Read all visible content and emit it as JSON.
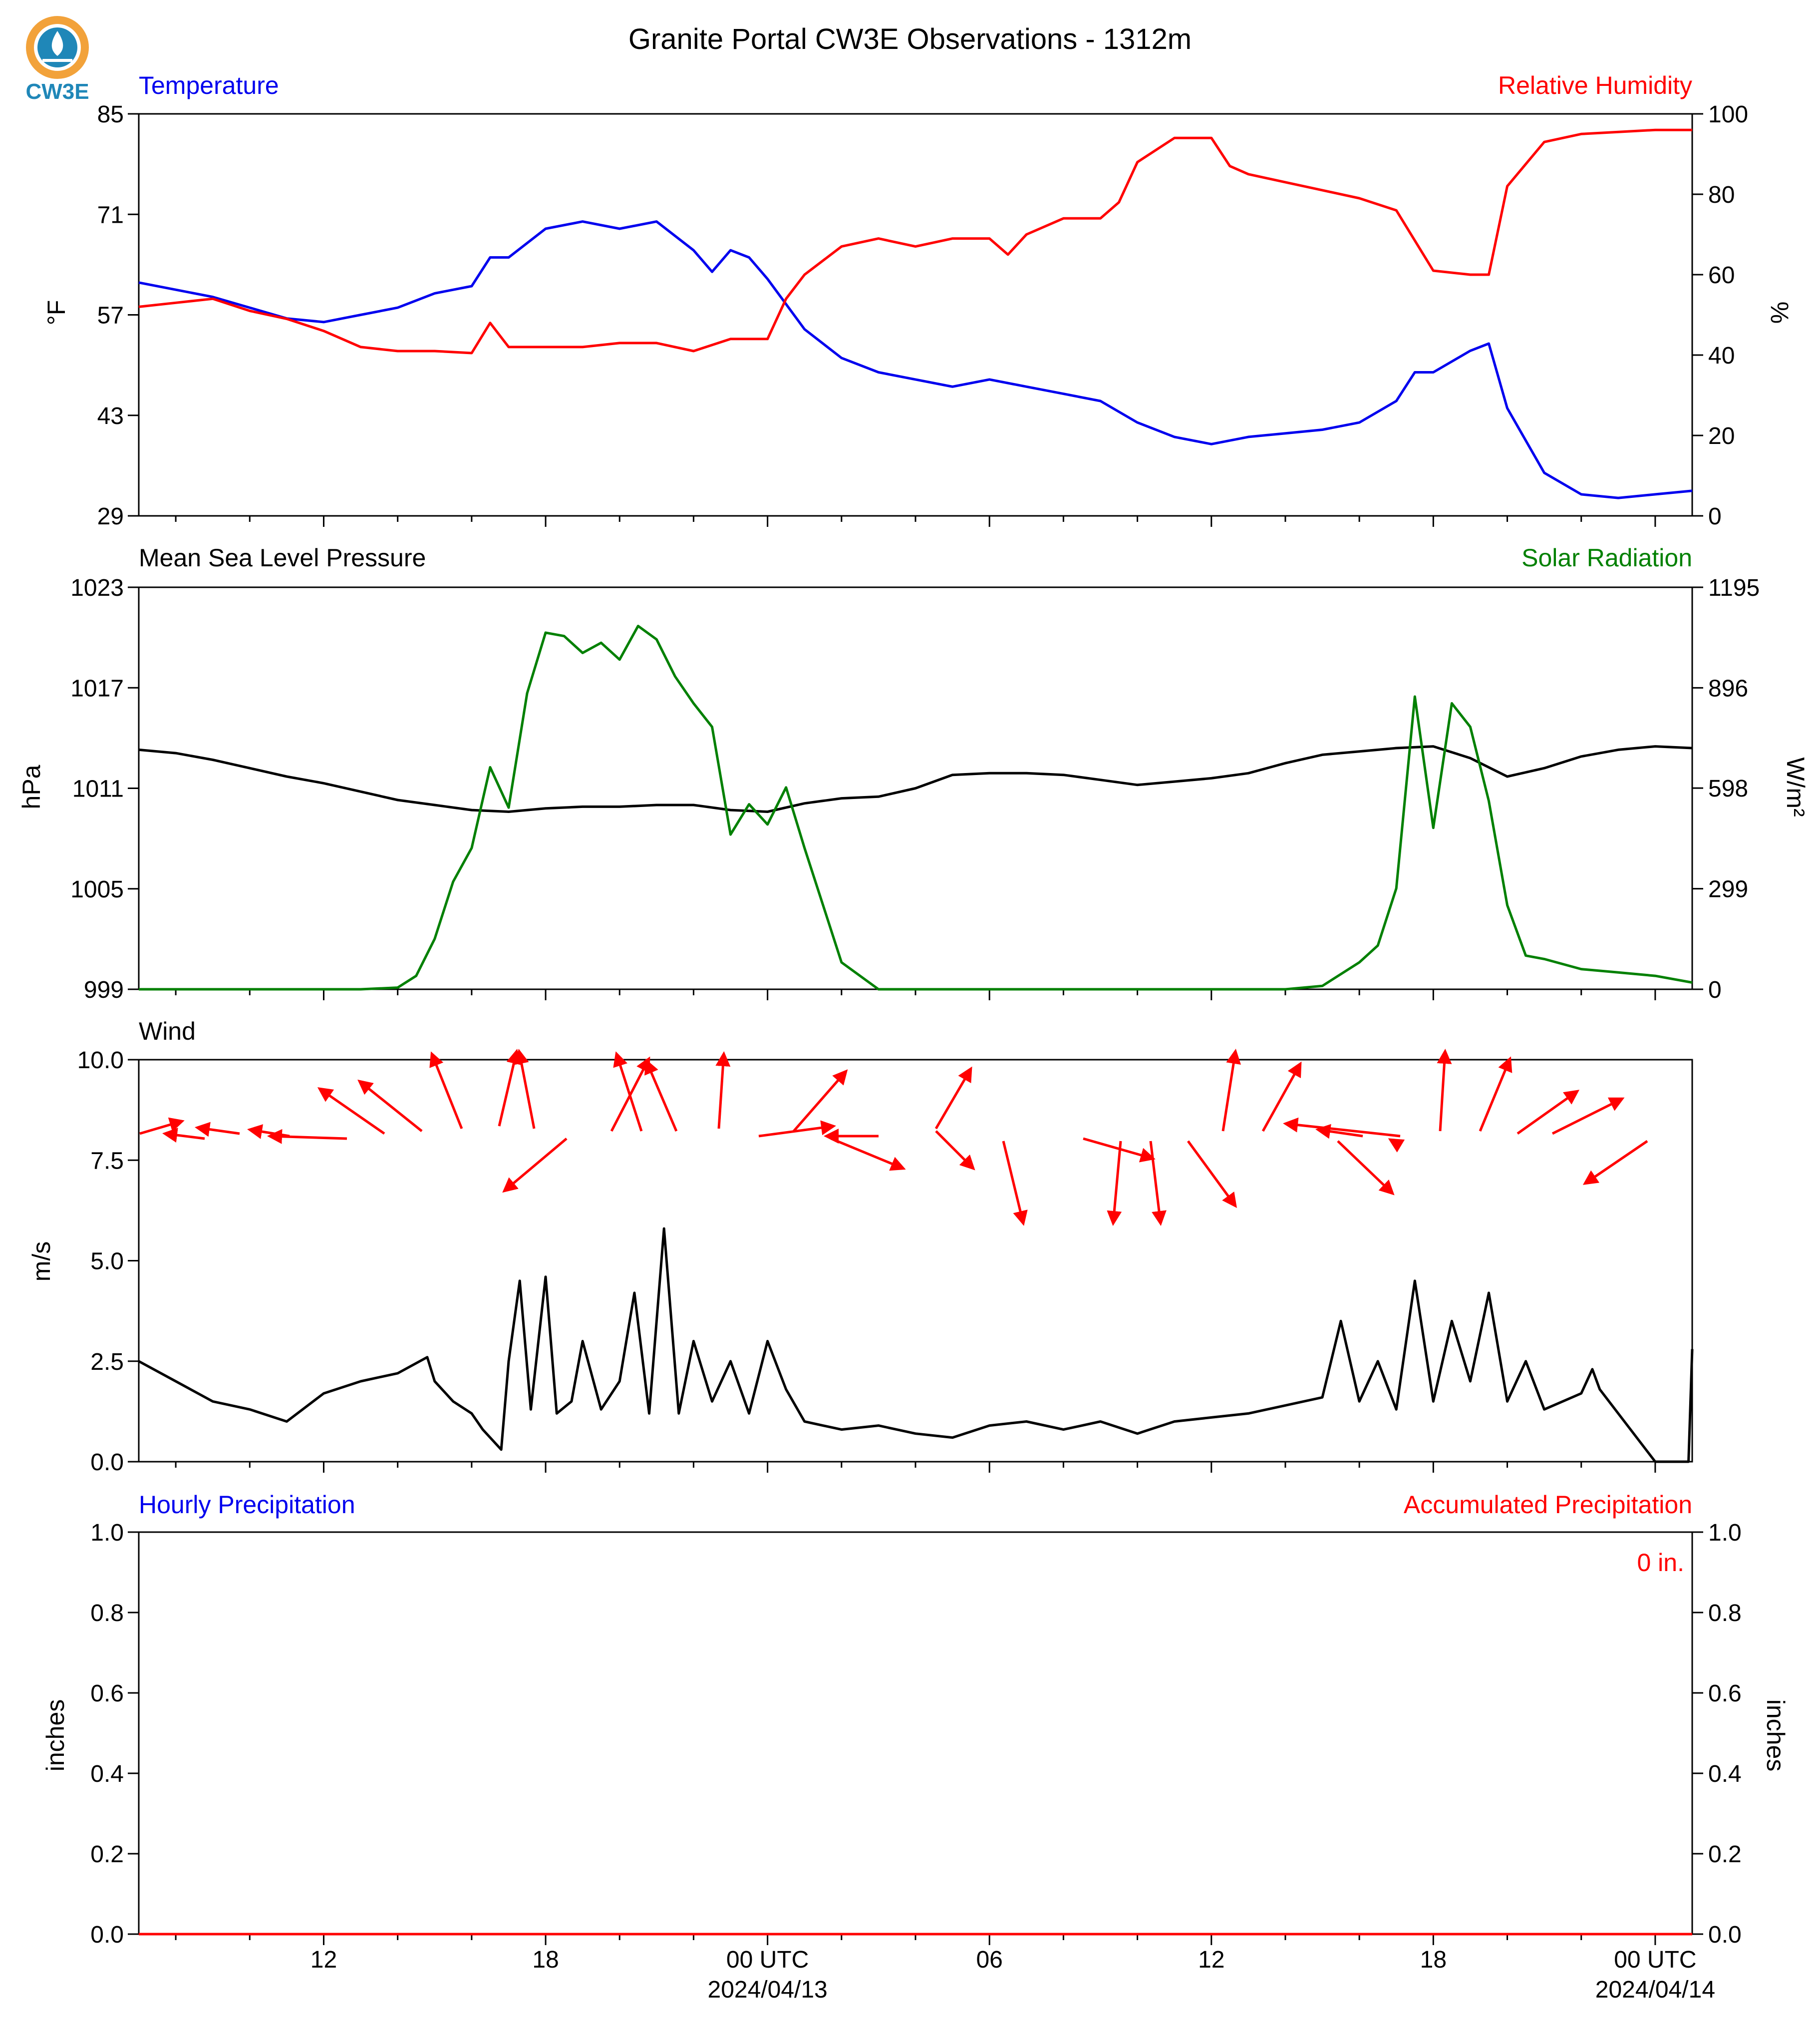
{
  "page": {
    "title": "Granite Portal CW3E Observations - 1312m",
    "logo_text": "CW3E"
  },
  "colors": {
    "temperature": "#0000ee",
    "humidity": "#ff0000",
    "pressure": "#000000",
    "solar": "#008000",
    "wind": "#000000",
    "arrows": "#ff0000",
    "hourly_precip": "#0000ee",
    "accum_precip": "#ff0000",
    "logo_orange": "#f2a23a",
    "logo_blue": "#1f87b8"
  },
  "x_axis": {
    "start_hour": 7,
    "end_hour": 49,
    "major_ticks": [
      {
        "hour": 12,
        "label": "12",
        "date": ""
      },
      {
        "hour": 18,
        "label": "18",
        "date": ""
      },
      {
        "hour": 24,
        "label": "00 UTC",
        "date": "2024/04/13"
      },
      {
        "hour": 30,
        "label": "06",
        "date": ""
      },
      {
        "hour": 36,
        "label": "12",
        "date": ""
      },
      {
        "hour": 42,
        "label": "18",
        "date": ""
      },
      {
        "hour": 48,
        "label": "00 UTC",
        "date": "2024/04/14"
      }
    ],
    "minor_ticks": [
      8,
      10,
      14,
      16,
      20,
      22,
      26,
      28,
      32,
      34,
      38,
      40,
      44,
      46
    ]
  },
  "chart_data": [
    {
      "type": "line",
      "left_title": "Temperature",
      "right_title": "Relative Humidity",
      "ylabel": "°F",
      "y2label": "%",
      "ylim": [
        29,
        85
      ],
      "yticks": [
        29,
        43,
        57,
        71,
        85
      ],
      "y2lim": [
        0,
        100
      ],
      "y2ticks": [
        0,
        20,
        40,
        60,
        80,
        100
      ],
      "series": [
        {
          "axis": "left",
          "x": [
            7,
            8,
            9,
            10,
            11,
            12,
            13,
            14,
            15,
            16,
            16.5,
            17,
            18,
            19,
            20,
            21,
            22,
            22.5,
            23,
            23.5,
            24,
            25,
            26,
            27,
            28,
            29,
            30,
            31,
            32,
            33,
            34,
            35,
            36,
            37,
            38,
            39,
            40,
            41,
            41.5,
            42,
            43,
            43.5,
            44,
            45,
            46,
            47,
            48,
            49
          ],
          "y": [
            61.5,
            60.5,
            59.5,
            58,
            56.5,
            56,
            57,
            58,
            60,
            61,
            65,
            65,
            69,
            70,
            69,
            70,
            66,
            63,
            66,
            65,
            62,
            55,
            51,
            49,
            48,
            47,
            48,
            47,
            46,
            45,
            42,
            40,
            39,
            40,
            40.5,
            41,
            42,
            45,
            49,
            49,
            52,
            53,
            44,
            35,
            32,
            31.5,
            32,
            32.5
          ]
        },
        {
          "axis": "right",
          "x": [
            7,
            8,
            9,
            10,
            11,
            12,
            13,
            14,
            15,
            16,
            16.5,
            17,
            18,
            19,
            20,
            21,
            22,
            23,
            24,
            24.5,
            25,
            26,
            27,
            28,
            29,
            30,
            30.5,
            31,
            32,
            33,
            33.5,
            34,
            35,
            36,
            36.5,
            37,
            38,
            39,
            40,
            41,
            42,
            43,
            43.5,
            44,
            45,
            46,
            47,
            48,
            49
          ],
          "y": [
            52,
            53,
            54,
            51,
            49,
            46,
            42,
            41,
            41,
            40.5,
            48,
            42,
            42,
            42,
            43,
            43,
            41,
            44,
            44,
            54,
            60,
            67,
            69,
            67,
            69,
            69,
            65,
            70,
            74,
            74,
            78,
            88,
            94,
            94,
            87,
            85,
            83,
            81,
            79,
            76,
            61,
            60,
            60,
            82,
            93,
            95,
            95.5,
            96,
            96
          ]
        }
      ]
    },
    {
      "type": "line",
      "left_title": "Mean Sea Level Pressure",
      "right_title": "Solar Radiation",
      "ylabel": "hPa",
      "y2label": "W/m²",
      "ylim": [
        999,
        1023
      ],
      "yticks": [
        999,
        1005,
        1011,
        1017,
        1023
      ],
      "y2lim": [
        0,
        1195
      ],
      "y2ticks": [
        0,
        299,
        598,
        896,
        1195
      ],
      "series": [
        {
          "axis": "left",
          "x": [
            7,
            8,
            9,
            10,
            11,
            12,
            13,
            14,
            15,
            16,
            17,
            18,
            19,
            20,
            21,
            22,
            23,
            24,
            25,
            26,
            27,
            28,
            29,
            30,
            31,
            32,
            33,
            34,
            35,
            36,
            37,
            38,
            39,
            40,
            41,
            42,
            43,
            44,
            45,
            46,
            47,
            48,
            49
          ],
          "y": [
            1013.3,
            1013.1,
            1012.7,
            1012.2,
            1011.7,
            1011.3,
            1010.8,
            1010.3,
            1010.0,
            1009.7,
            1009.6,
            1009.8,
            1009.9,
            1009.9,
            1010.0,
            1010.0,
            1009.7,
            1009.6,
            1010.1,
            1010.4,
            1010.5,
            1011.0,
            1011.8,
            1011.9,
            1011.9,
            1011.8,
            1011.5,
            1011.2,
            1011.4,
            1011.6,
            1011.9,
            1012.5,
            1013.0,
            1013.2,
            1013.4,
            1013.5,
            1012.8,
            1011.7,
            1012.2,
            1012.9,
            1013.3,
            1013.5,
            1013.4
          ]
        },
        {
          "axis": "right",
          "x": [
            7,
            13,
            14,
            14.5,
            15,
            15.5,
            16,
            16.5,
            17,
            17.5,
            18,
            18.5,
            19,
            19.5,
            20,
            20.5,
            21,
            21.5,
            22,
            22.5,
            23,
            23.5,
            24,
            24.5,
            25,
            25.5,
            26,
            27,
            33,
            34,
            35,
            36,
            37,
            38,
            39,
            40,
            40.5,
            41,
            41.5,
            42,
            42.5,
            43,
            43.5,
            44,
            44.5,
            45,
            46,
            47,
            48,
            49
          ],
          "y": [
            0,
            0,
            5,
            40,
            150,
            320,
            420,
            660,
            540,
            880,
            1060,
            1050,
            1000,
            1030,
            980,
            1080,
            1040,
            930,
            850,
            780,
            460,
            550,
            490,
            600,
            420,
            250,
            80,
            0,
            0,
            0,
            0,
            0,
            0,
            0,
            10,
            80,
            130,
            300,
            870,
            480,
            850,
            780,
            560,
            250,
            100,
            90,
            60,
            50,
            40,
            20
          ]
        }
      ]
    },
    {
      "type": "line",
      "left_title": "Wind",
      "ylabel": "m/s",
      "ylim": [
        0,
        10
      ],
      "yticks": [
        "0.0",
        "2.5",
        "5.0",
        "7.5",
        "10.0"
      ],
      "series": [
        {
          "axis": "left",
          "x": [
            7,
            8,
            9,
            10,
            11,
            12,
            13,
            14,
            14.8,
            15,
            15.5,
            16,
            16.3,
            16.8,
            17,
            17.3,
            17.6,
            18,
            18.3,
            18.7,
            19,
            19.5,
            20,
            20.4,
            20.8,
            21.2,
            21.6,
            22,
            22.5,
            23,
            23.5,
            24,
            24.5,
            25,
            26,
            27,
            28,
            29,
            30,
            31,
            32,
            33,
            34,
            35,
            36,
            37,
            38,
            39,
            39.5,
            40,
            40.5,
            41,
            41.5,
            42,
            42.5,
            43,
            43.5,
            44,
            44.5,
            45,
            46,
            46.3,
            46.5,
            47,
            48,
            48.9,
            49
          ],
          "y": [
            2.5,
            2.0,
            1.5,
            1.3,
            1.0,
            1.7,
            2.0,
            2.2,
            2.6,
            2.0,
            1.5,
            1.2,
            0.8,
            0.3,
            2.5,
            4.5,
            1.3,
            4.6,
            1.2,
            1.5,
            3.0,
            1.3,
            2.0,
            4.2,
            1.2,
            5.8,
            1.2,
            3.0,
            1.5,
            2.5,
            1.2,
            3.0,
            1.8,
            1.0,
            0.8,
            0.9,
            0.7,
            0.6,
            0.9,
            1.0,
            0.8,
            1.0,
            0.7,
            1.0,
            1.1,
            1.2,
            1.4,
            1.6,
            3.5,
            1.5,
            2.5,
            1.3,
            4.5,
            1.5,
            3.5,
            2.0,
            4.2,
            1.5,
            2.5,
            1.3,
            1.7,
            2.3,
            1.8,
            1.2,
            0.0,
            0.0,
            2.8
          ]
        }
      ]
    },
    {
      "type": "line",
      "left_title": "Hourly Precipitation",
      "right_title": "Accumulated Precipitation",
      "annotation": "0 in.",
      "ylabel": "inches",
      "y2label": "inches",
      "ylim": [
        0,
        1
      ],
      "yticks": [
        "0.0",
        "0.2",
        "0.4",
        "0.6",
        "0.8",
        "1.0"
      ],
      "y2lim": [
        0,
        1
      ],
      "y2ticks": [
        "0.0",
        "0.2",
        "0.4",
        "0.6",
        "0.8",
        "1.0"
      ],
      "series": [
        {
          "axis": "left",
          "x": [
            7,
            49
          ],
          "y": [
            0,
            0
          ]
        },
        {
          "axis": "right",
          "x": [
            7,
            49
          ],
          "y": [
            0,
            0
          ]
        }
      ]
    }
  ]
}
